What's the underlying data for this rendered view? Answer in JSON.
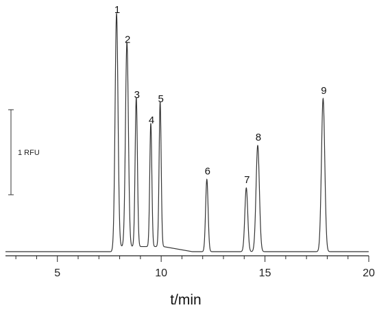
{
  "chart_data": {
    "type": "line",
    "title": "",
    "xlabel": "t/min",
    "ylabel": "",
    "xlim": [
      2.5,
      20
    ],
    "x_ticks": [
      5,
      10,
      15,
      20
    ],
    "x_tick_labels": [
      "5",
      "10",
      "15",
      "20"
    ],
    "grid": false,
    "legend": "none",
    "y_units": "RFU",
    "scale_bar": {
      "label": "1 RFU",
      "value": 1
    },
    "baseline_rfu": 0,
    "peaks": [
      {
        "label": "1",
        "time": 7.85,
        "height": 2.75,
        "width": 0.07
      },
      {
        "label": "2",
        "time": 8.35,
        "height": 2.4,
        "width": 0.07
      },
      {
        "label": "3",
        "time": 8.8,
        "height": 1.75,
        "width": 0.055
      },
      {
        "label": "4",
        "time": 9.5,
        "height": 1.45,
        "width": 0.05
      },
      {
        "label": "5",
        "time": 9.95,
        "height": 1.7,
        "width": 0.05
      },
      {
        "label": "6",
        "time": 12.2,
        "height": 0.85,
        "width": 0.06
      },
      {
        "label": "7",
        "time": 14.1,
        "height": 0.75,
        "width": 0.07
      },
      {
        "label": "8",
        "time": 14.65,
        "height": 1.25,
        "width": 0.08
      },
      {
        "label": "9",
        "time": 17.8,
        "height": 1.8,
        "width": 0.08
      }
    ],
    "line_color": "#333333"
  }
}
